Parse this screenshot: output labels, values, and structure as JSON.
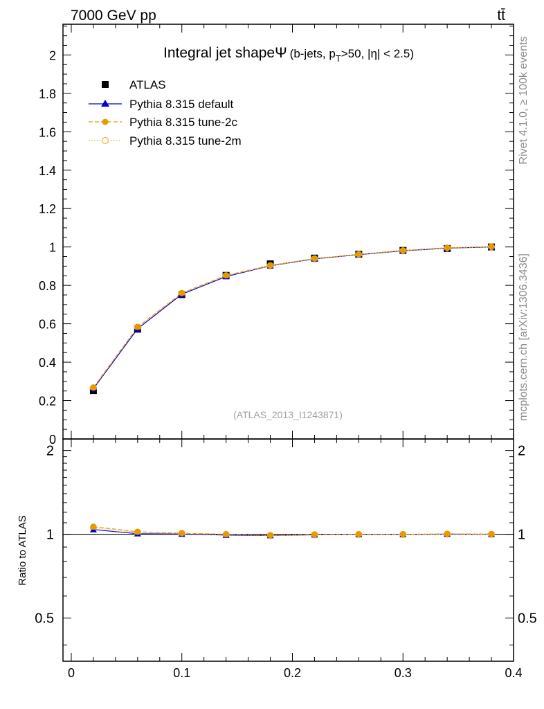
{
  "header": {
    "left": "7000 GeV pp",
    "right": "tt̄"
  },
  "side_labels": {
    "rivet": "Rivet 4.1.0, ≥ 100k events",
    "mcplots": "mcplots.cern.ch [arXiv:1306.3436]"
  },
  "watermark": "(ATLAS_2013_I1243871)",
  "chart_data": {
    "type": "line",
    "title": "Integral jet shapeΨ",
    "title_detail": "(b-jets, p",
    "title_sub": "T",
    "title_tail": ">50, |η| < 2.5)",
    "xlabel": "",
    "ylabel": "",
    "ratio_ylabel": "Ratio to ATLAS",
    "xlim": [
      -0.0075,
      0.4
    ],
    "ylim": [
      0,
      2.16
    ],
    "ratio_ylim": [
      0.35,
      2.2
    ],
    "x_ticks": [
      "0",
      "0.1",
      "0.2",
      "0.3",
      "0.4"
    ],
    "y_ticks": [
      "0",
      "0.2",
      "0.4",
      "0.6",
      "0.8",
      "1",
      "1.2",
      "1.4",
      "1.6",
      "1.8",
      "2"
    ],
    "ratio_ticks": [
      "0.5",
      "1",
      "2"
    ],
    "x": [
      0.02,
      0.06,
      0.1,
      0.14,
      0.18,
      0.22,
      0.26,
      0.3,
      0.34,
      0.38
    ],
    "series": [
      {
        "name": "ATLAS",
        "color": "#000000",
        "marker": "square",
        "values": [
          0.252,
          0.572,
          0.752,
          0.852,
          0.912,
          0.942,
          0.962,
          0.982,
          0.992,
          1.0
        ]
      },
      {
        "name": "Pythia 8.315 default",
        "color": "#0000cc",
        "marker": "triangle",
        "line": "solid",
        "values": [
          0.262,
          0.574,
          0.754,
          0.846,
          0.902,
          0.938,
          0.96,
          0.98,
          0.994,
          1.0
        ],
        "ratio": [
          1.04,
          1.005,
          1.002,
          0.994,
          0.99,
          0.996,
          0.998,
          0.998,
          1.002,
          1.0
        ]
      },
      {
        "name": "Pythia 8.315 tune-2c",
        "color": "#e69a00",
        "marker": "circle",
        "line": "dashed",
        "values": [
          0.268,
          0.584,
          0.76,
          0.852,
          0.904,
          0.94,
          0.962,
          0.982,
          0.996,
          1.002
        ],
        "ratio": [
          1.065,
          1.021,
          1.01,
          1.0,
          0.992,
          0.998,
          1.0,
          1.0,
          1.004,
          1.002
        ]
      },
      {
        "name": "Pythia 8.315 tune-2m",
        "color": "#f0b040",
        "marker": "open-circle",
        "line": "dotted",
        "values": [
          0.266,
          0.582,
          0.758,
          0.85,
          0.902,
          0.938,
          0.96,
          0.98,
          0.994,
          1.0
        ],
        "ratio": [
          1.057,
          1.017,
          1.007,
          0.998,
          0.99,
          0.996,
          0.998,
          0.998,
          1.002,
          1.0
        ]
      }
    ]
  }
}
